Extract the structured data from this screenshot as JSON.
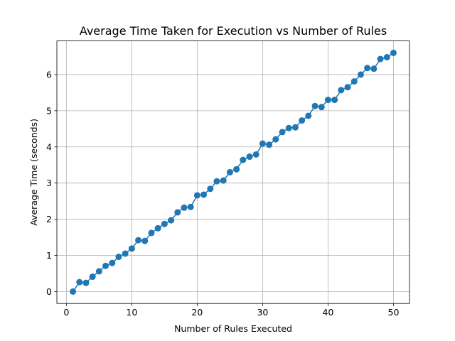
{
  "chart_data": {
    "type": "line",
    "title": "Average Time Taken for Execution vs Number of Rules",
    "xlabel": "Number of Rules Executed",
    "ylabel": "Average Time (seconds)",
    "xlim": [
      -1.45,
      52.45
    ],
    "ylim": [
      -0.33,
      6.93
    ],
    "xticks": [
      0,
      10,
      20,
      30,
      40,
      50
    ],
    "yticks": [
      0,
      1,
      2,
      3,
      4,
      5,
      6
    ],
    "grid": true,
    "marker": "circle",
    "colors": {
      "series": "#1f77b4",
      "grid": "#b0b0b0"
    },
    "series": [
      {
        "x": [
          1,
          2,
          3,
          4,
          5,
          6,
          7,
          8,
          9,
          10,
          11,
          12,
          13,
          14,
          15,
          16,
          17,
          18,
          19,
          20,
          21,
          22,
          23,
          24,
          25,
          26,
          27,
          28,
          29,
          30,
          31,
          32,
          33,
          34,
          35,
          36,
          37,
          38,
          39,
          40,
          41,
          42,
          43,
          44,
          45,
          46,
          47,
          48,
          49,
          50
        ],
        "y": [
          0.0,
          0.26,
          0.24,
          0.41,
          0.56,
          0.71,
          0.79,
          0.96,
          1.05,
          1.19,
          1.42,
          1.4,
          1.62,
          1.75,
          1.87,
          1.97,
          2.19,
          2.32,
          2.34,
          2.66,
          2.68,
          2.84,
          3.05,
          3.07,
          3.3,
          3.38,
          3.64,
          3.73,
          3.79,
          4.09,
          4.06,
          4.21,
          4.41,
          4.52,
          4.54,
          4.73,
          4.86,
          5.13,
          5.1,
          5.3,
          5.3,
          5.57,
          5.65,
          5.81,
          6.0,
          6.18,
          6.16,
          6.43,
          6.48,
          6.6
        ]
      }
    ]
  }
}
